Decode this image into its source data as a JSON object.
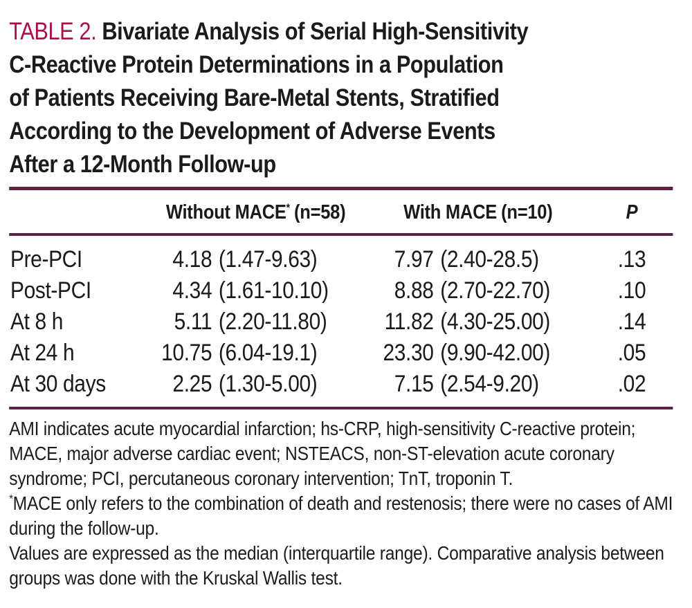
{
  "colors": {
    "title_accent": "#a8104a",
    "rule": "#5e2144",
    "text": "#1a1a1a",
    "background": "#ffffff"
  },
  "title": {
    "label": "TABLE 2.",
    "line1_rest": "Bivariate Analysis of Serial High-Sensitivity",
    "line2": "C-Reactive Protein Determinations in a Population",
    "line3": "of Patients Receiving Bare-Metal Stents, Stratified",
    "line4": "According to the Development of Adverse Events",
    "line5": "After a 12-Month Follow-up"
  },
  "table": {
    "columns": {
      "without": {
        "name": "Without MACE",
        "marker": "*",
        "n": "(n=58)"
      },
      "with": {
        "name": "With MACE",
        "n": "(n=10)"
      },
      "p": "P"
    },
    "rows": [
      {
        "label": "Pre-PCI",
        "without": {
          "value": "4.18",
          "range": "(1.47-9.63)"
        },
        "with": {
          "value": "7.97",
          "range": "(2.40-28.5)"
        },
        "p": ".13"
      },
      {
        "label": "Post-PCI",
        "without": {
          "value": "4.34",
          "range": "(1.61-10.10)"
        },
        "with": {
          "value": "8.88",
          "range": "(2.70-22.70)"
        },
        "p": ".10"
      },
      {
        "label": "At 8 h",
        "without": {
          "value": "5.11",
          "range": "(2.20-11.80)"
        },
        "with": {
          "value": "11.82",
          "range": "(4.30-25.00)"
        },
        "p": ".14"
      },
      {
        "label": "At 24 h",
        "without": {
          "value": "10.75",
          "range": "(6.04-19.1)"
        },
        "with": {
          "value": "23.30",
          "range": "(9.90-42.00)"
        },
        "p": ".05"
      },
      {
        "label": "At 30 days",
        "without": {
          "value": "2.25",
          "range": "(1.30-5.00)"
        },
        "with": {
          "value": "7.15",
          "range": "(2.54-9.20)"
        },
        "p": ".02"
      }
    ]
  },
  "footnotes": {
    "abbreviations": "AMI indicates acute myocardial infarction; hs-CRP, high-sensitivity C-reactive protein; MACE, major adverse cardiac event; NSTEACS, non-ST-elevation acute coronary syndrome; PCI, percutaneous coronary intervention; TnT, troponin T.",
    "mace_marker": "*",
    "mace_note": "MACE only refers to the combination of death and restenosis; there were no cases of AMI during the follow-up.",
    "values_note": "Values are expressed as the median (interquartile range). Comparative analysis between groups was done with the Kruskal Wallis test."
  }
}
